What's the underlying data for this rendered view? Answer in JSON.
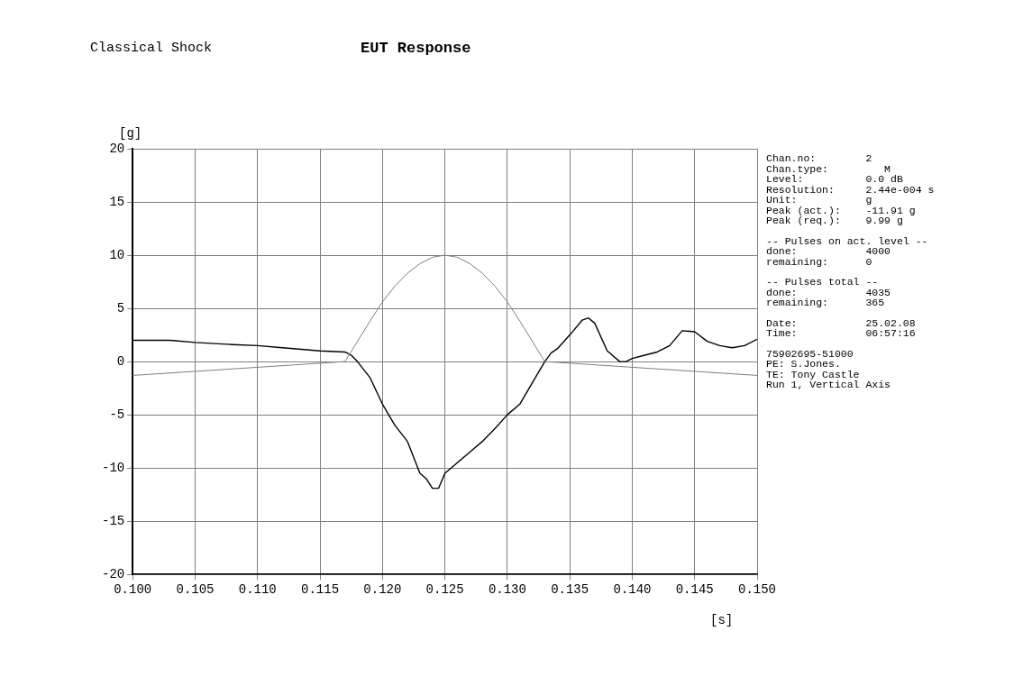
{
  "chart_data": {
    "type": "line",
    "title": "EUT Response",
    "subtitle": "Classical Shock",
    "xlabel": "[s]",
    "ylabel": "[g]",
    "xlim": [
      0.1,
      0.15
    ],
    "xticks": [
      {
        "value": 0.1,
        "label": "0.100"
      },
      {
        "value": 0.105,
        "label": "0.105"
      },
      {
        "value": 0.11,
        "label": "0.110"
      },
      {
        "value": 0.115,
        "label": "0.115"
      },
      {
        "value": 0.12,
        "label": "0.120"
      },
      {
        "value": 0.125,
        "label": "0.125"
      },
      {
        "value": 0.13,
        "label": "0.130"
      },
      {
        "value": 0.135,
        "label": "0.135"
      },
      {
        "value": 0.14,
        "label": "0.140"
      },
      {
        "value": 0.145,
        "label": "0.145"
      },
      {
        "value": 0.15,
        "label": "0.150"
      }
    ],
    "ylim": [
      -20,
      20
    ],
    "yticks": [
      -20,
      -15,
      -10,
      -5,
      0,
      5,
      10,
      15,
      20
    ],
    "grid": true,
    "legend": false,
    "marker": "none",
    "line_style": "solid",
    "series": [
      {
        "color": "#808080",
        "x": [
          0.1,
          0.117,
          0.118,
          0.119,
          0.12,
          0.121,
          0.122,
          0.123,
          0.124,
          0.125,
          0.126,
          0.127,
          0.128,
          0.129,
          0.13,
          0.131,
          0.132,
          0.133,
          0.15
        ],
        "values": [
          -1.3,
          0,
          1.9,
          3.8,
          5.6,
          7.1,
          8.3,
          9.2,
          9.8,
          10,
          9.8,
          9.2,
          8.3,
          7.1,
          5.6,
          3.8,
          1.9,
          0,
          -1.3
        ]
      },
      {
        "color": "#000000",
        "x": [
          0.1,
          0.103,
          0.105,
          0.108,
          0.11,
          0.112,
          0.115,
          0.117,
          0.1175,
          0.118,
          0.119,
          0.12,
          0.121,
          0.122,
          0.1225,
          0.123,
          0.1235,
          0.124,
          0.1245,
          0.125,
          0.126,
          0.127,
          0.128,
          0.129,
          0.13,
          0.131,
          0.132,
          0.133,
          0.1335,
          0.134,
          0.135,
          0.136,
          0.1365,
          0.137,
          0.138,
          0.139,
          0.1395,
          0.14,
          0.141,
          0.142,
          0.143,
          0.144,
          0.145,
          0.146,
          0.147,
          0.148,
          0.149,
          0.15
        ],
        "values": [
          2.0,
          2.0,
          1.8,
          1.6,
          1.5,
          1.3,
          1.0,
          0.9,
          0.6,
          0,
          -1.5,
          -4,
          -6,
          -7.5,
          -9,
          -10.5,
          -11,
          -11.9,
          -11.9,
          -10.5,
          -9.5,
          -8.5,
          -7.5,
          -6.3,
          -5,
          -4,
          -2,
          0,
          0.8,
          1.2,
          2.5,
          3.9,
          4.1,
          3.6,
          1.0,
          0.0,
          0,
          0.3,
          0.6,
          0.9,
          1.5,
          2.9,
          2.8,
          1.9,
          1.5,
          1.3,
          1.5,
          2.1
        ]
      }
    ],
    "annotations": [
      "Chan.no:        2",
      "Chan.type:         M",
      "Level:          0.0 dB",
      "Resolution:     2.44e-004 s",
      "Unit:           g",
      "Peak (act.):    -11.91 g",
      "Peak (req.):    9.99 g",
      "-- Pulses on act. level --",
      "done:           4000",
      "remaining:      0",
      "-- Pulses total --",
      "done:           4035",
      "remaining:      365",
      "Date:           25.02.08",
      "Time:           06:57:16",
      "75902695-51000",
      "PE: S.Jones.",
      "TE: Tony Castle",
      "Run 1, Vertical Axis"
    ]
  }
}
